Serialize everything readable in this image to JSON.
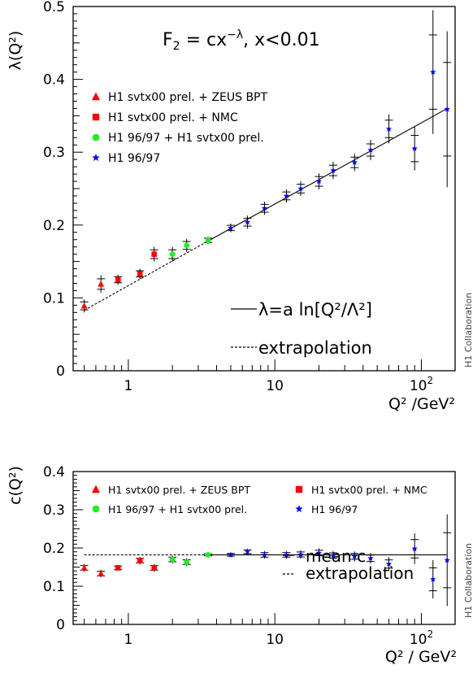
{
  "chart_data": [
    {
      "type": "scatter",
      "ylabel": "λ(Q²)",
      "xlabel": "Q² /GeV²",
      "x_scale": "log",
      "xlim": [
        0.42,
        170
      ],
      "ylim": [
        0,
        0.5
      ],
      "x_ticks": [
        "1",
        "10",
        "10²"
      ],
      "y_ticks": [
        "0",
        "0.1",
        "0.2",
        "0.3",
        "0.4",
        "0.5"
      ],
      "title": "F₂ = cx⁻λ,  x<0.01",
      "side_label": "H1 Collaboration",
      "series": [
        {
          "name": "H1 svtx00 prel. + ZEUS BPT",
          "marker": "triangle",
          "color": "#ff0000",
          "x": [
            0.5,
            0.65
          ],
          "y": [
            0.089,
            0.119
          ],
          "err": [
            0.009,
            0.012
          ]
        },
        {
          "name": "H1 svtx00 prel. + NMC",
          "marker": "square",
          "color": "#ff0000",
          "x": [
            0.85,
            1.2,
            1.5
          ],
          "y": [
            0.125,
            0.133,
            0.16
          ],
          "err": [
            0.007,
            0.007,
            0.01
          ]
        },
        {
          "name": "H1 96/97 + H1 svtx00 prel.",
          "marker": "circle",
          "color": "#22ee22",
          "x": [
            2.0,
            2.5,
            3.5
          ],
          "y": [
            0.16,
            0.172,
            0.179
          ],
          "err": [
            0.01,
            0.009,
            0.005
          ]
        },
        {
          "name": "H1 96/97",
          "marker": "star",
          "color": "#0000ff",
          "x": [
            5,
            6.5,
            8.5,
            12,
            15,
            20,
            25,
            35,
            45,
            60,
            90,
            120,
            150
          ],
          "y": [
            0.196,
            0.204,
            0.223,
            0.24,
            0.25,
            0.26,
            0.275,
            0.286,
            0.303,
            0.332,
            0.305,
            0.41,
            0.359
          ],
          "err": [
            0.006,
            0.009,
            0.009,
            0.009,
            0.01,
            0.011,
            0.012,
            0.012,
            0.014,
            0.02,
            0.03,
            0.085,
            0.107
          ]
        }
      ],
      "lines": [
        {
          "label": "λ=a ln[Q²/Λ²]",
          "style": "solid",
          "x": [
            3.5,
            150
          ],
          "y": [
            0.178,
            0.36
          ]
        },
        {
          "label": "extrapolation",
          "style": "dashed",
          "x": [
            0.5,
            3.5
          ],
          "y": [
            0.083,
            0.178
          ]
        }
      ]
    },
    {
      "type": "scatter",
      "ylabel": "c(Q²)",
      "xlabel": "Q² / GeV²",
      "x_scale": "log",
      "xlim": [
        0.42,
        170
      ],
      "ylim": [
        0,
        0.4
      ],
      "x_ticks": [
        "1",
        "10",
        "10²"
      ],
      "y_ticks": [
        "0",
        "0.1",
        "0.2",
        "0.3",
        "0.4"
      ],
      "side_label": "H1 Collaboration",
      "series": [
        {
          "name": "H1 svtx00 prel. + ZEUS BPT",
          "marker": "triangle",
          "color": "#ff0000",
          "x": [
            0.5,
            0.65
          ],
          "y": [
            0.148,
            0.133
          ],
          "err": [
            0.01,
            0.01
          ]
        },
        {
          "name": "H1 svtx00 prel. + NMC",
          "marker": "square",
          "color": "#ff0000",
          "x": [
            0.85,
            1.2,
            1.5
          ],
          "y": [
            0.148,
            0.167,
            0.148
          ],
          "err": [
            0.008,
            0.01,
            0.01
          ]
        },
        {
          "name": "H1 96/97 + H1 svtx00 prel.",
          "marker": "circle",
          "color": "#22ee22",
          "x": [
            2.0,
            2.5,
            3.5
          ],
          "y": [
            0.17,
            0.163,
            0.182
          ],
          "err": [
            0.01,
            0.01,
            0.004
          ]
        },
        {
          "name": "H1 96/97",
          "marker": "star",
          "color": "#0000ff",
          "x": [
            5,
            6.5,
            8.5,
            12,
            15,
            20,
            25,
            35,
            45,
            60,
            90,
            120,
            150
          ],
          "y": [
            0.182,
            0.19,
            0.182,
            0.182,
            0.183,
            0.187,
            0.18,
            0.178,
            0.173,
            0.158,
            0.198,
            0.118,
            0.168
          ],
          "err": [
            0.006,
            0.008,
            0.01,
            0.01,
            0.011,
            0.012,
            0.012,
            0.013,
            0.014,
            0.018,
            0.04,
            0.05,
            0.12
          ]
        }
      ],
      "lines": [
        {
          "label": "mean c",
          "style": "solid",
          "x": [
            3.5,
            150
          ],
          "y": [
            0.182,
            0.182
          ]
        },
        {
          "label": "extrapolation",
          "style": "dashed",
          "x": [
            0.5,
            3.5
          ],
          "y": [
            0.182,
            0.182
          ]
        }
      ]
    }
  ]
}
